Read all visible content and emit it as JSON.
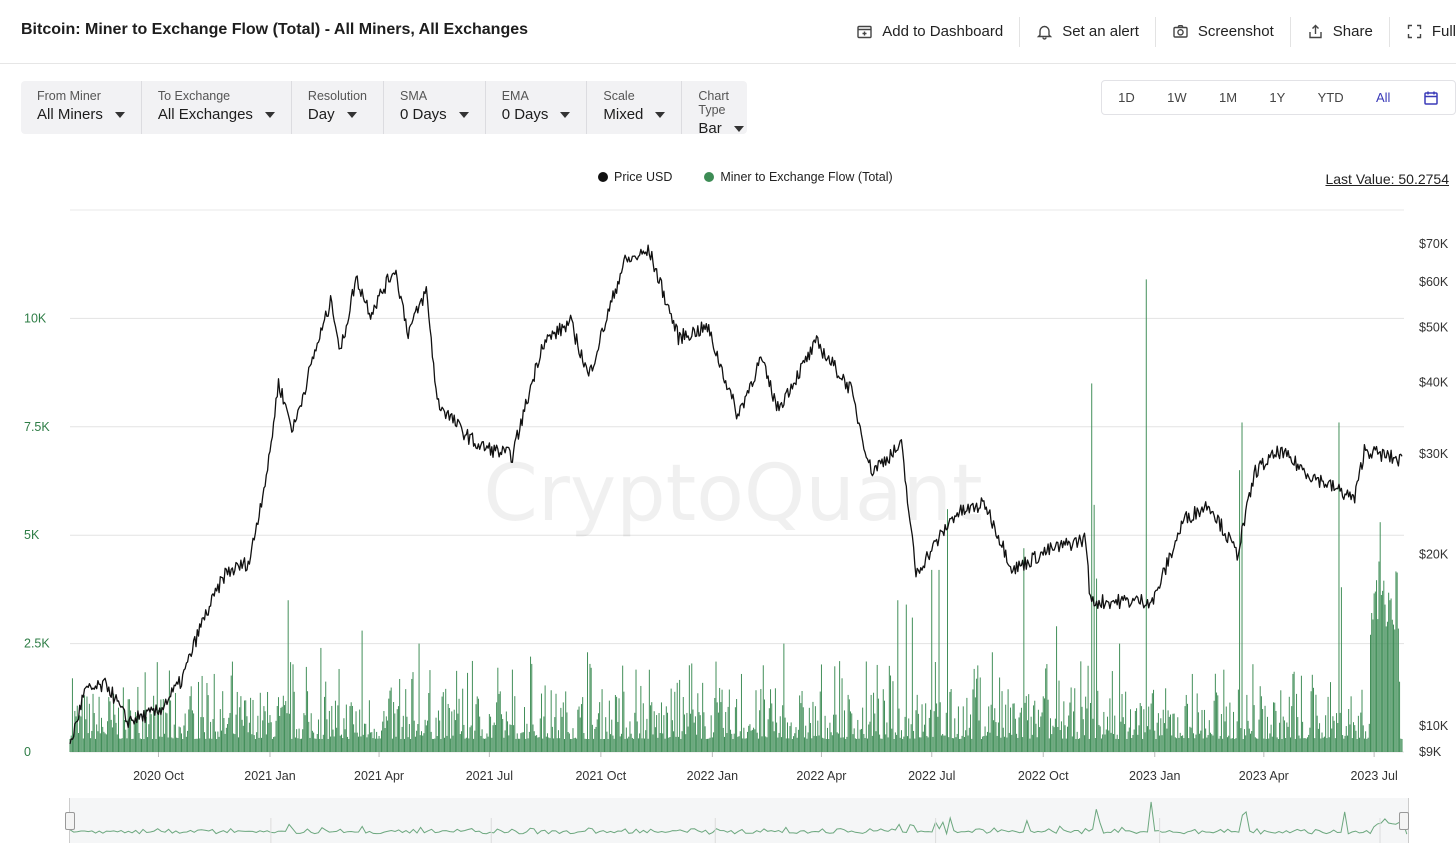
{
  "header": {
    "title": "Bitcoin: Miner to Exchange Flow (Total) - All Miners, All Exchanges",
    "actions": [
      {
        "label": "Add to Dashboard",
        "icon": "add-dashboard-icon"
      },
      {
        "label": "Set an alert",
        "icon": "bell-icon"
      },
      {
        "label": "Screenshot",
        "icon": "camera-icon"
      },
      {
        "label": "Share",
        "icon": "share-icon"
      },
      {
        "label": "Full",
        "icon": "fullscreen-icon"
      }
    ]
  },
  "controls": [
    {
      "label": "From Miner",
      "value": "All Miners"
    },
    {
      "label": "To Exchange",
      "value": "All Exchanges"
    },
    {
      "label": "Resolution",
      "value": "Day"
    },
    {
      "label": "SMA",
      "value": "0 Days"
    },
    {
      "label": "EMA",
      "value": "0 Days"
    },
    {
      "label": "Scale",
      "value": "Mixed"
    },
    {
      "label": "Chart Type",
      "value": "Bar"
    }
  ],
  "ranges": [
    "1D",
    "1W",
    "1M",
    "1Y",
    "YTD",
    "All"
  ],
  "active_range": "All",
  "legend": [
    {
      "label": "Price USD",
      "color": "#111111"
    },
    {
      "label": "Miner to Exchange Flow (Total)",
      "color": "#3d8c55"
    }
  ],
  "last_value": "Last Value: 50.2754",
  "watermark": "CryptoQuant",
  "colors": {
    "flow": "#3d8c55",
    "price": "#111111",
    "accent": "#3a3ab8",
    "flow_axis": "#2e7d46"
  },
  "chart_data": {
    "type": "bar",
    "x_ticks": [
      "2020 Oct",
      "2021 Jan",
      "2021 Apr",
      "2021 Jul",
      "2021 Oct",
      "2022 Jan",
      "2022 Apr",
      "2022 Jul",
      "2022 Oct",
      "2023 Jan",
      "2023 Apr",
      "2023 Jul"
    ],
    "x_range": [
      "2020-07-20",
      "2023-07-24"
    ],
    "left_axis": {
      "ticks": [
        "0",
        "2.5K",
        "5K",
        "7.5K",
        "10K"
      ],
      "range": [
        0,
        12500
      ]
    },
    "right_axis": {
      "ticks": [
        "$9K",
        "$10K",
        "$20K",
        "$30K",
        "$40K",
        "$50K",
        "$60K",
        "$70K"
      ],
      "scale": "log"
    },
    "series": [
      {
        "name": "Price USD",
        "type": "line",
        "points": [
          [
            "2020-07-20",
            9200
          ],
          [
            "2020-08-01",
            11500
          ],
          [
            "2020-08-20",
            11800
          ],
          [
            "2020-09-05",
            10200
          ],
          [
            "2020-10-01",
            10600
          ],
          [
            "2020-10-20",
            12000
          ],
          [
            "2020-11-05",
            15000
          ],
          [
            "2020-11-25",
            18500
          ],
          [
            "2020-12-15",
            19400
          ],
          [
            "2020-12-31",
            29000
          ],
          [
            "2021-01-08",
            40000
          ],
          [
            "2021-01-20",
            33000
          ],
          [
            "2021-02-08",
            46000
          ],
          [
            "2021-02-21",
            56000
          ],
          [
            "2021-02-28",
            45000
          ],
          [
            "2021-03-13",
            61000
          ],
          [
            "2021-03-25",
            53000
          ],
          [
            "2021-04-14",
            63500
          ],
          [
            "2021-04-25",
            49000
          ],
          [
            "2021-05-10",
            58000
          ],
          [
            "2021-05-19",
            37000
          ],
          [
            "2021-06-08",
            33000
          ],
          [
            "2021-06-22",
            31000
          ],
          [
            "2021-07-20",
            29800
          ],
          [
            "2021-08-14",
            47000
          ],
          [
            "2021-09-06",
            51000
          ],
          [
            "2021-09-21",
            41000
          ],
          [
            "2021-10-20",
            65000
          ],
          [
            "2021-11-10",
            68000
          ],
          [
            "2021-12-04",
            48000
          ],
          [
            "2021-12-28",
            50000
          ],
          [
            "2022-01-22",
            35000
          ],
          [
            "2022-02-10",
            44000
          ],
          [
            "2022-02-24",
            36000
          ],
          [
            "2022-03-28",
            47000
          ],
          [
            "2022-04-25",
            39000
          ],
          [
            "2022-05-12",
            28000
          ],
          [
            "2022-06-06",
            31000
          ],
          [
            "2022-06-18",
            18500
          ],
          [
            "2022-07-20",
            23500
          ],
          [
            "2022-08-14",
            24500
          ],
          [
            "2022-09-06",
            18800
          ],
          [
            "2022-10-05",
            20300
          ],
          [
            "2022-11-05",
            21300
          ],
          [
            "2022-11-09",
            16500
          ],
          [
            "2022-12-31",
            16600
          ],
          [
            "2023-01-25",
            23000
          ],
          [
            "2023-02-15",
            24500
          ],
          [
            "2023-03-10",
            20000
          ],
          [
            "2023-03-25",
            28000
          ],
          [
            "2023-04-14",
            30300
          ],
          [
            "2023-05-10",
            27500
          ],
          [
            "2023-05-20",
            26800
          ],
          [
            "2023-06-15",
            25000
          ],
          [
            "2023-06-23",
            30500
          ],
          [
            "2023-07-24",
            29200
          ]
        ]
      },
      {
        "name": "Miner to Exchange Flow (Total)",
        "type": "bar",
        "spikes": [
          [
            "2020-07-22",
            1700
          ],
          [
            "2020-09-14",
            1500
          ],
          [
            "2020-11-16",
            1800
          ],
          [
            "2021-01-16",
            3500
          ],
          [
            "2021-02-12",
            2400
          ],
          [
            "2021-03-18",
            2800
          ],
          [
            "2021-05-04",
            2500
          ],
          [
            "2021-06-17",
            2100
          ],
          [
            "2021-08-04",
            2200
          ],
          [
            "2021-09-20",
            2300
          ],
          [
            "2021-10-30",
            1900
          ],
          [
            "2021-12-13",
            2000
          ],
          [
            "2022-01-25",
            1800
          ],
          [
            "2022-03-01",
            2500
          ],
          [
            "2022-04-18",
            1700
          ],
          [
            "2022-06-03",
            3500
          ],
          [
            "2022-06-10",
            3400
          ],
          [
            "2022-06-15",
            3100
          ],
          [
            "2022-07-01",
            4200
          ],
          [
            "2022-07-07",
            4200
          ],
          [
            "2022-07-14",
            5600
          ],
          [
            "2022-08-20",
            2300
          ],
          [
            "2022-09-15",
            4700
          ],
          [
            "2022-10-12",
            2900
          ],
          [
            "2022-11-10",
            8500
          ],
          [
            "2022-11-12",
            5700
          ],
          [
            "2022-11-14",
            4000
          ],
          [
            "2022-12-03",
            2500
          ],
          [
            "2022-12-25",
            10900
          ],
          [
            "2023-02-01",
            1800
          ],
          [
            "2023-03-12",
            6500
          ],
          [
            "2023-03-14",
            7600
          ],
          [
            "2023-04-25",
            1800
          ],
          [
            "2023-06-02",
            7600
          ],
          [
            "2023-06-04",
            3800
          ],
          [
            "2023-07-02",
            3700
          ],
          [
            "2023-07-06",
            5300
          ],
          [
            "2023-07-10",
            3400
          ]
        ],
        "typical_daily_range": [
          300,
          1500
        ],
        "late_period": {
          "start": "2023-06-28",
          "end": "2023-07-21",
          "range": [
            2500,
            4400
          ]
        }
      }
    ],
    "xlabel": "",
    "ylabel": ""
  }
}
